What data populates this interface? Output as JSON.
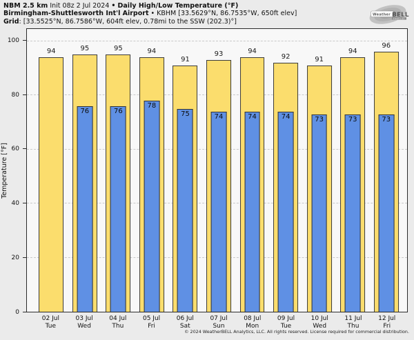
{
  "header": {
    "model": "NBM 2.5 km",
    "init_info": "Init 08z 2 Jul 2024",
    "separator": "•",
    "chart_title": "Daily High/Low Temperature (°F)",
    "station": "Birmingham-Shuttlesworth Int'l Airport",
    "station_info": "KBHM [33.5629°N, 86.7535°W, 650ft elev]",
    "grid_label": "Grid",
    "grid_info": ": [33.5525°N, 86.7586°W, 604ft elev, 0.78mi to the SSW (202.3)°]"
  },
  "logo": {
    "brand_part1": "Weather",
    "brand_part2": "BELL",
    "sub": "Analytics LLC"
  },
  "footer": "© 2024 WeatherBELL Analytics, LLC. All rights reserved. License required for commercial distribution.",
  "colors": {
    "high_bar": "#fbdd6d",
    "low_bar": "#5f90e4",
    "bar_border": "#3a3a3a",
    "figure_bg": "#ebebeb",
    "plot_bg": "#f8f8f8",
    "gridline": "#c9c9c9"
  },
  "chart_data": {
    "type": "bar",
    "title": "Daily High/Low Temperature (°F)",
    "subtitle": "NBM 2.5 km · Birmingham-Shuttlesworth Int'l Airport (KBHM)",
    "xlabel": "",
    "ylabel": "Temperature [°F]",
    "ylim": [
      0,
      104.5
    ],
    "yticks": [
      0,
      20,
      40,
      60,
      80,
      100
    ],
    "grid": "horizontal dashed at yticks",
    "legend": "none",
    "categories": [
      {
        "date": "02 Jul",
        "day": "Tue"
      },
      {
        "date": "03 Jul",
        "day": "Wed"
      },
      {
        "date": "04 Jul",
        "day": "Thu"
      },
      {
        "date": "05 Jul",
        "day": "Fri"
      },
      {
        "date": "06 Jul",
        "day": "Sat"
      },
      {
        "date": "07 Jul",
        "day": "Sun"
      },
      {
        "date": "08 Jul",
        "day": "Mon"
      },
      {
        "date": "09 Jul",
        "day": "Tue"
      },
      {
        "date": "10 Jul",
        "day": "Wed"
      },
      {
        "date": "11 Jul",
        "day": "Thu"
      },
      {
        "date": "12 Jul",
        "day": "Fri"
      }
    ],
    "series": [
      {
        "name": "Daily High",
        "color": "#fbdd6d",
        "values": [
          94,
          95,
          95,
          94,
          91,
          93,
          94,
          92,
          91,
          94,
          96
        ]
      },
      {
        "name": "Daily Low",
        "color": "#5f90e4",
        "values": [
          null,
          76,
          76,
          78,
          75,
          74,
          74,
          74,
          73,
          73,
          73
        ]
      }
    ]
  }
}
